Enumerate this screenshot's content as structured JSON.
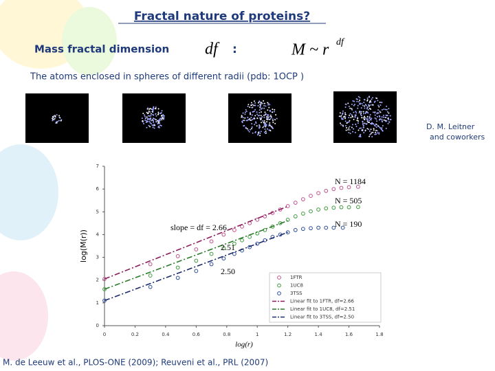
{
  "slide": {
    "title": "Fractal nature of proteins?",
    "label": "Mass fractal dimension",
    "symbol": "df",
    "colon": ":",
    "formula_base": "M ~ r",
    "formula_exp": "df",
    "caption": "The atoms enclosed in spheres of different radii (pdb: 1OCP )",
    "credit_1": "D. M. Leitner",
    "credit_2": "and coworkers",
    "reference": "M. de Leeuw  et al., PLOS-ONE (2009); Reuveni et al., PRL (2007)"
  },
  "chart_data": {
    "type": "scatter",
    "x_label": "log(r)",
    "y_label": "log(M(r))",
    "xlim": [
      0,
      1.8
    ],
    "ylim": [
      0,
      7
    ],
    "xticks": [
      0,
      0.2,
      0.4,
      0.6,
      0.8,
      1,
      1.2,
      1.4,
      1.6,
      1.8
    ],
    "yticks": [
      0,
      1,
      2,
      3,
      4,
      5,
      6,
      7
    ],
    "legend": "lower-right",
    "series": [
      {
        "name": "1FTR",
        "color": "#c0508c",
        "mode": "markers",
        "x": [
          0,
          0.3,
          0.48,
          0.6,
          0.7,
          0.78,
          0.85,
          0.9,
          0.95,
          1,
          1.05,
          1.1,
          1.15,
          1.2,
          1.25,
          1.3,
          1.35,
          1.4,
          1.45,
          1.5,
          1.55,
          1.6,
          1.66
        ],
        "values": [
          2.05,
          2.7,
          3.05,
          3.35,
          3.7,
          4.0,
          4.2,
          4.35,
          4.5,
          4.65,
          4.8,
          4.95,
          5.1,
          5.25,
          5.4,
          5.55,
          5.7,
          5.82,
          5.92,
          6.0,
          6.05,
          6.08,
          6.1
        ]
      },
      {
        "name": "1UC8",
        "color": "#3c9a3c",
        "mode": "markers",
        "x": [
          0,
          0.3,
          0.48,
          0.6,
          0.7,
          0.78,
          0.85,
          0.9,
          0.95,
          1,
          1.05,
          1.1,
          1.15,
          1.2,
          1.25,
          1.3,
          1.35,
          1.4,
          1.45,
          1.5,
          1.55,
          1.6,
          1.66
        ],
        "values": [
          1.6,
          2.2,
          2.55,
          2.85,
          3.15,
          3.4,
          3.6,
          3.75,
          3.9,
          4.05,
          4.2,
          4.35,
          4.5,
          4.65,
          4.8,
          4.92,
          5.02,
          5.1,
          5.15,
          5.18,
          5.2,
          5.2,
          5.21
        ]
      },
      {
        "name": "3TSS",
        "color": "#2a4a9a",
        "mode": "markers",
        "x": [
          0,
          0.3,
          0.48,
          0.6,
          0.7,
          0.78,
          0.85,
          0.9,
          0.95,
          1,
          1.05,
          1.1,
          1.15,
          1.2,
          1.25,
          1.3,
          1.35,
          1.4,
          1.45,
          1.5,
          1.56
        ],
        "values": [
          1.1,
          1.7,
          2.1,
          2.4,
          2.7,
          2.95,
          3.15,
          3.3,
          3.45,
          3.6,
          3.75,
          3.9,
          4.0,
          4.1,
          4.2,
          4.25,
          4.28,
          4.3,
          4.3,
          4.3,
          4.3
        ]
      },
      {
        "name": "Linear fit to 1FTR, df=2.66",
        "color": "#8b1a5a",
        "mode": "line",
        "x": [
          0,
          1.2
        ],
        "values": [
          2.05,
          5.24
        ]
      },
      {
        "name": "Linear fit to 1UC8, df=2.51",
        "color": "#2a7a2a",
        "mode": "line",
        "x": [
          0,
          1.2
        ],
        "values": [
          1.6,
          4.61
        ]
      },
      {
        "name": "Linear fit to 3TSS, df=2.50",
        "color": "#1a2a6a",
        "mode": "line",
        "x": [
          0,
          1.2
        ],
        "values": [
          1.1,
          4.1
        ]
      }
    ],
    "annotations": [
      "N = 1184",
      "N = 505",
      "N = 190",
      "slope = df = 2.66",
      "2.51",
      "2.50"
    ]
  }
}
